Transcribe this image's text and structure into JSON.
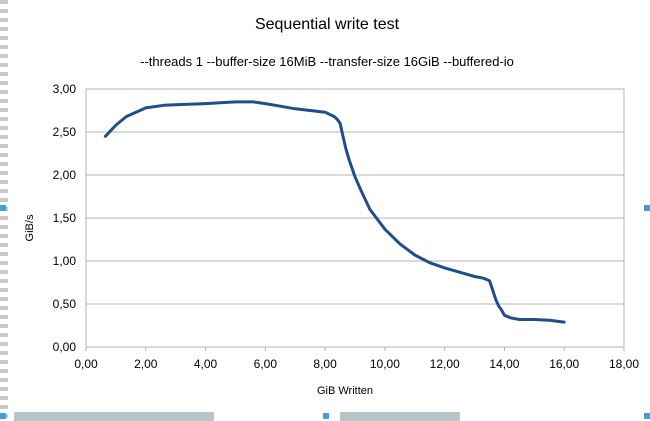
{
  "chart_data": {
    "type": "line",
    "title": "Sequential write test",
    "subtitle": "--threads 1 --buffer-size 16MiB --transfer-size 16GiB --buffered-io",
    "xlabel": "GiB Written",
    "ylabel": "GiB/s",
    "xlim": [
      0,
      18
    ],
    "ylim": [
      0,
      3
    ],
    "x_ticks": [
      "0,00",
      "2,00",
      "4,00",
      "6,00",
      "8,00",
      "10,00",
      "12,00",
      "14,00",
      "16,00",
      "18,00"
    ],
    "y_ticks": [
      "0,00",
      "0,50",
      "1,00",
      "1,50",
      "2,00",
      "2,50",
      "3,00"
    ],
    "grid": "horizontal",
    "legend": "none",
    "series": [
      {
        "color": "#1f4e8c",
        "x": [
          0.65,
          1.0,
          1.35,
          2.0,
          2.6,
          3.2,
          4.0,
          5.0,
          5.6,
          6.0,
          6.5,
          7.0,
          7.5,
          8.0,
          8.3,
          8.4,
          8.5,
          8.6,
          8.7,
          8.8,
          8.9,
          9.0,
          9.2,
          9.5,
          10.0,
          10.5,
          11.0,
          11.5,
          12.0,
          12.5,
          13.0,
          13.3,
          13.5,
          13.6,
          13.7,
          13.8,
          13.9,
          14.0,
          14.2,
          14.5,
          15.0,
          15.5,
          16.0
        ],
        "y": [
          2.45,
          2.58,
          2.68,
          2.78,
          2.81,
          2.82,
          2.83,
          2.85,
          2.85,
          2.83,
          2.8,
          2.77,
          2.75,
          2.73,
          2.68,
          2.65,
          2.6,
          2.45,
          2.3,
          2.18,
          2.08,
          1.98,
          1.82,
          1.6,
          1.37,
          1.2,
          1.07,
          0.98,
          0.92,
          0.87,
          0.82,
          0.8,
          0.77,
          0.67,
          0.56,
          0.48,
          0.43,
          0.37,
          0.34,
          0.32,
          0.32,
          0.31,
          0.29
        ]
      }
    ]
  }
}
